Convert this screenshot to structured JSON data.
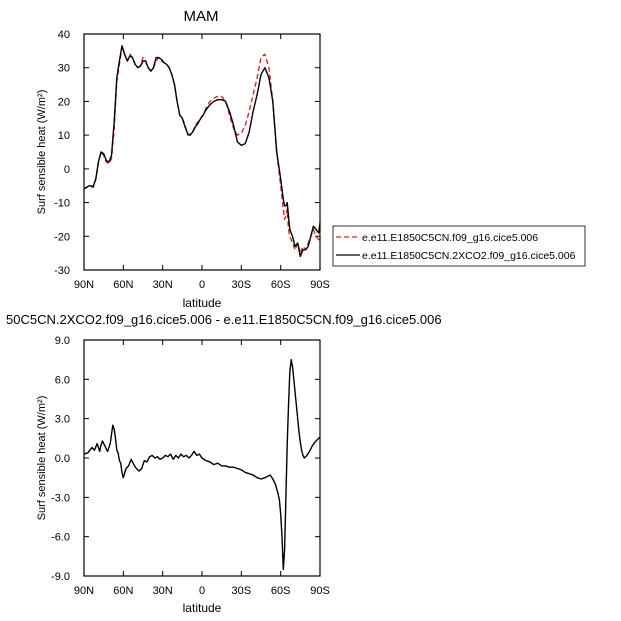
{
  "chart_data": [
    {
      "type": "line",
      "title": "MAM",
      "xlabel": "latitude",
      "ylabel": "Surf sensible heat (W/m²)",
      "ylim": [
        -30,
        40
      ],
      "yticks": [
        -30,
        -20,
        -10,
        0,
        10,
        20,
        30,
        40
      ],
      "ytick_labels": [
        "-30",
        "-20",
        "-10",
        "0",
        "10",
        "20",
        "30",
        "40"
      ],
      "xticks": [
        -90,
        -60,
        -30,
        0,
        30,
        60,
        90
      ],
      "xtick_labels": [
        "90N",
        "60N",
        "30N",
        "0",
        "30S",
        "60S",
        "90S"
      ],
      "x_note": "x is latitude from 90N (-90) to 90S (90)",
      "legend_position": "right",
      "series": [
        {
          "name": "e.e11.E1850C5CN.f09_g16.cice5.006",
          "color": "#d62728",
          "dash": "dashed",
          "x": [
            -90,
            -86,
            -83,
            -81,
            -79,
            -77,
            -75,
            -73,
            -71,
            -69,
            -67,
            -65,
            -63,
            -61,
            -59,
            -57,
            -55,
            -53,
            -51,
            -49,
            -47,
            -45,
            -43,
            -41,
            -39,
            -37,
            -35,
            -33,
            -31,
            -29,
            -27,
            -25,
            -23,
            -21,
            -19,
            -17,
            -15,
            -13,
            -11,
            -9,
            -7,
            -5,
            -3,
            -1,
            1,
            3,
            6,
            9,
            12,
            15,
            18,
            21,
            24,
            27,
            30,
            33,
            36,
            39,
            42,
            45,
            48,
            51,
            54,
            57,
            60,
            62,
            63,
            64,
            65,
            66,
            67,
            69,
            71,
            73,
            75,
            77,
            79,
            81,
            83,
            85,
            87,
            89,
            90
          ],
          "y": [
            -6,
            -5,
            -5.5,
            -3,
            2,
            5,
            4,
            2,
            1.5,
            3,
            12,
            26,
            31,
            36,
            34,
            32,
            34,
            33,
            31,
            30,
            30.5,
            33,
            32,
            30,
            29,
            30,
            32,
            33,
            32,
            31.5,
            31,
            30,
            28,
            25,
            20,
            16,
            15,
            13,
            10,
            10,
            11,
            13,
            14,
            15,
            16,
            18,
            20,
            21,
            21.5,
            21.5,
            20,
            16,
            12,
            10,
            10.5,
            13,
            17,
            22,
            27,
            33,
            34,
            30,
            20,
            5,
            -5,
            -12,
            -15,
            -14,
            -12,
            -18,
            -20,
            -22,
            -24,
            -22,
            -25,
            -23,
            -24,
            -22,
            -20,
            -18,
            -20,
            -21,
            -19
          ]
        },
        {
          "name": "e.e11.E1850C5CN.2XCO2.f09_g16.cice5.006",
          "color": "#000000",
          "dash": "solid",
          "x": [
            -90,
            -86,
            -83,
            -81,
            -79,
            -77,
            -75,
            -73,
            -71,
            -69,
            -67,
            -65,
            -63,
            -61,
            -59,
            -57,
            -55,
            -53,
            -51,
            -49,
            -47,
            -45,
            -43,
            -41,
            -39,
            -37,
            -35,
            -33,
            -31,
            -29,
            -27,
            -25,
            -23,
            -21,
            -19,
            -17,
            -15,
            -13,
            -11,
            -9,
            -7,
            -5,
            -3,
            -1,
            1,
            3,
            6,
            9,
            12,
            15,
            18,
            21,
            24,
            27,
            30,
            33,
            36,
            39,
            42,
            45,
            48,
            51,
            54,
            57,
            60,
            62,
            63,
            64,
            65,
            66,
            67,
            69,
            71,
            73,
            75,
            77,
            79,
            81,
            83,
            85,
            87,
            89,
            90
          ],
          "y": [
            -6,
            -5,
            -5.2,
            -3,
            2,
            5,
            4.5,
            2.5,
            2,
            4,
            14,
            27,
            32,
            36.5,
            34,
            32,
            33.5,
            33,
            31,
            30,
            30.5,
            32,
            32,
            30,
            29,
            30,
            33,
            33,
            32.5,
            31.5,
            31,
            30,
            28,
            25,
            20,
            16,
            15,
            12.5,
            10.5,
            10,
            11,
            12.5,
            13.5,
            15,
            16,
            17.5,
            19,
            20,
            20.5,
            20.5,
            20,
            17,
            13,
            8,
            7,
            7.5,
            11,
            17,
            22,
            28,
            30,
            27,
            20,
            5,
            -3,
            -9,
            -11,
            -11,
            -10,
            -14,
            -18,
            -20,
            -23,
            -22,
            -26,
            -24,
            -24,
            -23,
            -20,
            -17,
            -18,
            -19,
            -16
          ]
        }
      ]
    },
    {
      "type": "line",
      "title": "50C5CN.2XCO2.f09_g16.cice5.006 - e.e11.E1850C5CN.f09_g16.cice5.006",
      "xlabel": "latitude",
      "ylabel": "Surf sensible heat (W/m²)",
      "ylim": [
        -9,
        9
      ],
      "yticks": [
        -9,
        -6,
        -3,
        0,
        3,
        6,
        9
      ],
      "ytick_labels": [
        "-9.0",
        "-6.0",
        "-3.0",
        "0.0",
        "3.0",
        "6.0",
        "9.0"
      ],
      "xticks": [
        -90,
        -60,
        -30,
        0,
        30,
        60,
        90
      ],
      "xtick_labels": [
        "90N",
        "60N",
        "30N",
        "0",
        "30S",
        "60S",
        "90S"
      ],
      "series": [
        {
          "name": "",
          "color": "#000000",
          "dash": "solid",
          "x": [
            -90,
            -87,
            -84,
            -82,
            -80,
            -78,
            -77,
            -76,
            -74,
            -72,
            -70,
            -68,
            -67,
            -66,
            -65,
            -64,
            -63,
            -62,
            -61,
            -60,
            -58,
            -56,
            -54,
            -52,
            -50,
            -48,
            -46,
            -44,
            -42,
            -40,
            -38,
            -36,
            -34,
            -32,
            -30,
            -28,
            -26,
            -24,
            -22,
            -20,
            -18,
            -16,
            -14,
            -12,
            -10,
            -8,
            -6,
            -4,
            -2,
            0,
            3,
            6,
            9,
            12,
            15,
            18,
            21,
            24,
            27,
            30,
            33,
            36,
            39,
            42,
            45,
            48,
            50,
            52,
            54,
            56,
            58,
            59,
            60,
            61,
            62,
            63,
            64,
            65,
            66,
            67,
            68,
            69,
            70,
            71,
            72,
            73,
            74,
            75,
            76,
            77,
            78,
            80,
            82,
            84,
            86,
            88,
            90
          ],
          "y": [
            0.3,
            0.4,
            0.8,
            0.6,
            1.1,
            0.5,
            1.0,
            1.3,
            0.9,
            0.5,
            1.1,
            2.5,
            2.2,
            1.5,
            0.6,
            0.4,
            -0.2,
            -0.4,
            -1.1,
            -1.5,
            -0.8,
            -0.6,
            -0.1,
            -0.5,
            -0.8,
            -1.0,
            -0.8,
            -0.2,
            -0.3,
            0.1,
            0.2,
            0.0,
            0.1,
            -0.1,
            0.0,
            0.2,
            0.1,
            0.3,
            -0.1,
            0.2,
            0.0,
            0.3,
            0.1,
            0.2,
            0.0,
            0.2,
            0.5,
            0.2,
            0.3,
            0.0,
            -0.2,
            -0.3,
            -0.5,
            -0.4,
            -0.6,
            -0.6,
            -0.7,
            -0.7,
            -0.8,
            -0.9,
            -1.1,
            -1.2,
            -1.3,
            -1.5,
            -1.6,
            -1.5,
            -1.4,
            -1.3,
            -1.6,
            -2.0,
            -2.7,
            -3.2,
            -4.3,
            -6.0,
            -8.5,
            -7.0,
            -3.0,
            1.0,
            4.0,
            6.5,
            7.5,
            7.0,
            6.0,
            5.0,
            4.0,
            3.0,
            2.0,
            1.2,
            0.6,
            0.2,
            0.0,
            0.2,
            0.5,
            0.9,
            1.2,
            1.4,
            1.6
          ]
        }
      ]
    }
  ]
}
